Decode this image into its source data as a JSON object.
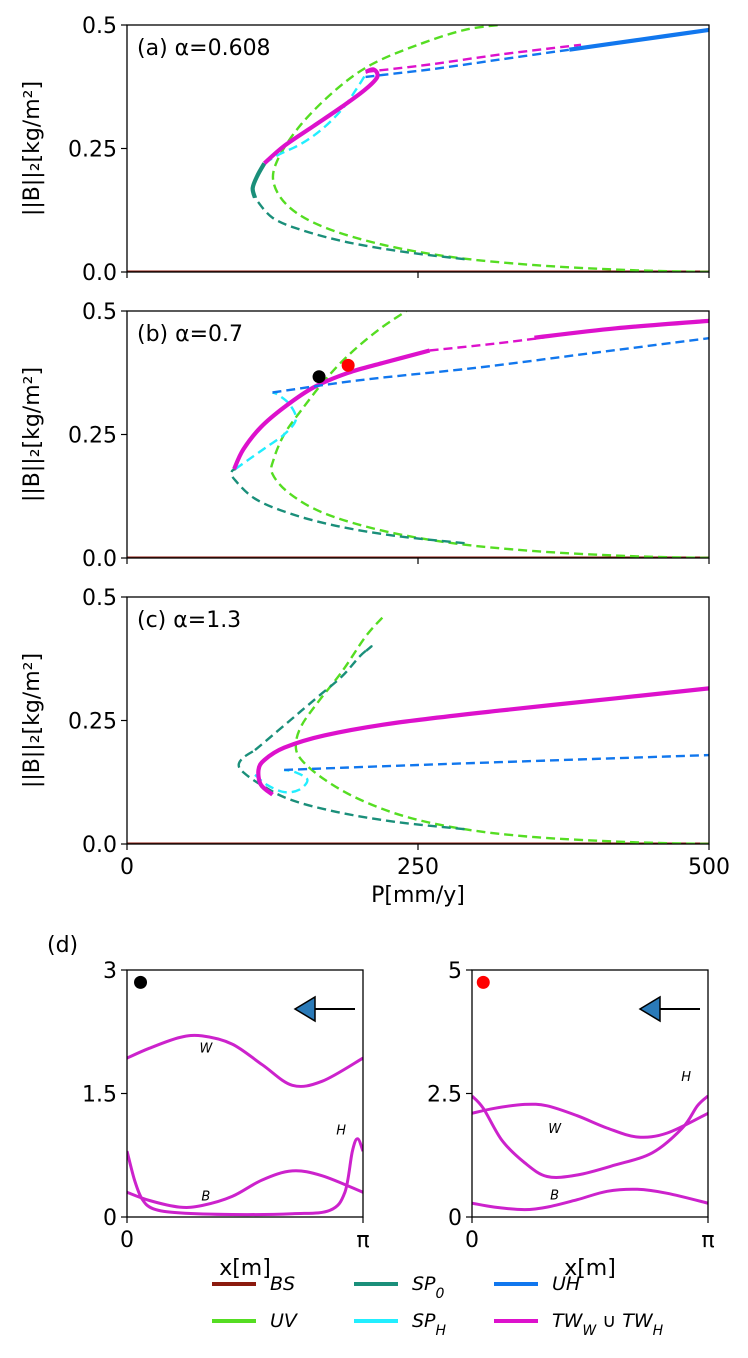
{
  "figure_label_d": "(d)",
  "legend": [
    {
      "key": "BS",
      "label": "BS",
      "color": "#8b1a0e",
      "style": "solid"
    },
    {
      "key": "UV",
      "label": "UV",
      "color": "#55dd22",
      "style": "solid"
    },
    {
      "key": "SP0",
      "label": "SP",
      "sub": "0",
      "color": "#1a8f7a",
      "style": "solid"
    },
    {
      "key": "SPH",
      "label": "SP",
      "sub": "H",
      "color": "#22eeff",
      "style": "solid"
    },
    {
      "key": "UH",
      "label": "UH",
      "color": "#1177ee",
      "style": "solid"
    },
    {
      "key": "TW",
      "label": "TW",
      "sub": "W",
      "mid": " ∪ ",
      "label2": "TW",
      "sub2": "H",
      "color": "#dd11cc",
      "style": "solid"
    }
  ],
  "chart_data": [
    {
      "id": "a",
      "type": "line",
      "panel_label": "(a) α=0.608",
      "ylabel": "||B||₂[kg/m²]",
      "xlim": [
        0,
        500
      ],
      "ylim": [
        0,
        0.5
      ],
      "yticks": [
        "0.0",
        "0.25",
        "0.5"
      ],
      "xticks": [],
      "series": [
        {
          "name": "BS",
          "color": "#8b1a0e",
          "dash": false,
          "x": [
            0,
            500
          ],
          "y": [
            0.0,
            0.0
          ]
        },
        {
          "name": "UV",
          "color": "#55dd22",
          "dash": true,
          "x": [
            500,
            430,
            350,
            280,
            220,
            170,
            140,
            126,
            130,
            150,
            180,
            210,
            250,
            290,
            320
          ],
          "y": [
            0.0,
            0.004,
            0.014,
            0.03,
            0.055,
            0.09,
            0.13,
            0.18,
            0.23,
            0.3,
            0.37,
            0.42,
            0.46,
            0.49,
            0.5
          ]
        },
        {
          "name": "SP0 unstable",
          "color": "#1a8f7a",
          "dash": true,
          "x": [
            290,
            240,
            190,
            150,
            125,
            110
          ],
          "y": [
            0.026,
            0.04,
            0.06,
            0.085,
            0.11,
            0.15
          ]
        },
        {
          "name": "SP0 stable",
          "color": "#1a8f7a",
          "dash": false,
          "x": [
            110,
            108,
            112,
            118
          ],
          "y": [
            0.15,
            0.17,
            0.195,
            0.22
          ]
        },
        {
          "name": "SPH",
          "color": "#22eeff",
          "dash": true,
          "x": [
            118,
            130,
            150,
            168,
            185,
            197,
            205
          ],
          "y": [
            0.22,
            0.237,
            0.26,
            0.29,
            0.33,
            0.37,
            0.4
          ]
        },
        {
          "name": "TW stable",
          "color": "#dd11cc",
          "dash": false,
          "x": [
            118,
            135,
            160,
            185,
            205,
            215,
            212,
            205
          ],
          "y": [
            0.22,
            0.255,
            0.295,
            0.335,
            0.37,
            0.395,
            0.41,
            0.405
          ]
        },
        {
          "name": "TW unstable",
          "color": "#dd11cc",
          "dash": true,
          "x": [
            205,
            260,
            320,
            390
          ],
          "y": [
            0.405,
            0.42,
            0.44,
            0.46
          ]
        },
        {
          "name": "UH unstable",
          "color": "#1177ee",
          "dash": true,
          "x": [
            205,
            260,
            320,
            380
          ],
          "y": [
            0.395,
            0.41,
            0.43,
            0.45
          ]
        },
        {
          "name": "UH stable",
          "color": "#1177ee",
          "dash": false,
          "x": [
            380,
            440,
            500
          ],
          "y": [
            0.45,
            0.47,
            0.49
          ]
        }
      ]
    },
    {
      "id": "b",
      "type": "line",
      "panel_label": "(b) α=0.7",
      "ylabel": "||B||₂[kg/m²]",
      "xlim": [
        0,
        500
      ],
      "ylim": [
        0,
        0.5
      ],
      "yticks": [
        "0.0",
        "0.25",
        "0.5"
      ],
      "xticks": [],
      "series": [
        {
          "name": "BS",
          "color": "#8b1a0e",
          "dash": false,
          "x": [
            0,
            500
          ],
          "y": [
            0.0,
            0.0
          ]
        },
        {
          "name": "UV",
          "color": "#55dd22",
          "dash": true,
          "x": [
            500,
            430,
            350,
            280,
            220,
            170,
            140,
            125,
            126,
            135,
            150,
            170,
            190,
            215,
            240
          ],
          "y": [
            0.0,
            0.004,
            0.014,
            0.03,
            0.055,
            0.09,
            0.13,
            0.17,
            0.2,
            0.25,
            0.3,
            0.36,
            0.41,
            0.46,
            0.5
          ]
        },
        {
          "name": "SP0",
          "color": "#1a8f7a",
          "dash": true,
          "x": [
            290,
            230,
            180,
            140,
            110,
            92,
            90,
            93
          ],
          "y": [
            0.03,
            0.045,
            0.065,
            0.09,
            0.12,
            0.16,
            0.175,
            0.18
          ]
        },
        {
          "name": "SPH",
          "color": "#22eeff",
          "dash": true,
          "x": [
            93,
            105,
            120,
            135,
            145,
            140,
            130,
            125
          ],
          "y": [
            0.18,
            0.2,
            0.225,
            0.25,
            0.28,
            0.31,
            0.33,
            0.335
          ]
        },
        {
          "name": "TW stable a",
          "color": "#dd11cc",
          "dash": false,
          "x": [
            92,
            100,
            115,
            135,
            160,
            190,
            220,
            260
          ],
          "y": [
            0.18,
            0.22,
            0.265,
            0.305,
            0.345,
            0.375,
            0.395,
            0.42
          ]
        },
        {
          "name": "TW unstable",
          "color": "#dd11cc",
          "dash": true,
          "x": [
            260,
            320,
            360
          ],
          "y": [
            0.42,
            0.435,
            0.447
          ]
        },
        {
          "name": "TW stable b",
          "color": "#dd11cc",
          "dash": false,
          "x": [
            350,
            420,
            500
          ],
          "y": [
            0.446,
            0.465,
            0.48
          ]
        },
        {
          "name": "UH",
          "color": "#1177ee",
          "dash": true,
          "x": [
            125,
            200,
            300,
            400,
            500
          ],
          "y": [
            0.335,
            0.36,
            0.385,
            0.415,
            0.445
          ]
        }
      ],
      "markers": [
        {
          "name": "black-point",
          "x": 165,
          "y": 0.367,
          "color": "#000000"
        },
        {
          "name": "red-point",
          "x": 190,
          "y": 0.39,
          "color": "#ff0000"
        }
      ]
    },
    {
      "id": "c",
      "type": "line",
      "panel_label": "(c) α=1.3",
      "ylabel": "||B||₂[kg/m²]",
      "xlabel": "P[mm/y]",
      "xlim": [
        0,
        500
      ],
      "ylim": [
        0,
        0.5
      ],
      "yticks": [
        "0.0",
        "0.25",
        "0.5"
      ],
      "xticks": [
        "0",
        "250",
        "500"
      ],
      "series": [
        {
          "name": "BS",
          "color": "#8b1a0e",
          "dash": false,
          "x": [
            0,
            500
          ],
          "y": [
            0.0,
            0.0
          ]
        },
        {
          "name": "UV",
          "color": "#55dd22",
          "dash": true,
          "x": [
            500,
            430,
            350,
            290,
            240,
            200,
            170,
            150,
            145,
            150,
            165,
            185,
            205,
            220
          ],
          "y": [
            0.0,
            0.004,
            0.014,
            0.03,
            0.055,
            0.09,
            0.13,
            0.17,
            0.2,
            0.24,
            0.29,
            0.35,
            0.42,
            0.46
          ]
        },
        {
          "name": "SP0 lower",
          "color": "#1a8f7a",
          "dash": true,
          "x": [
            290,
            230,
            180,
            140,
            115,
            100,
            96,
            100,
            110
          ],
          "y": [
            0.03,
            0.045,
            0.065,
            0.09,
            0.12,
            0.145,
            0.16,
            0.175,
            0.19
          ]
        },
        {
          "name": "SP0 upper",
          "color": "#1a8f7a",
          "dash": true,
          "x": [
            110,
            125,
            140,
            150,
            165,
            185,
            200,
            210,
            205
          ],
          "y": [
            0.19,
            0.22,
            0.25,
            0.27,
            0.3,
            0.34,
            0.38,
            0.4,
            0.39
          ]
        },
        {
          "name": "SPH",
          "color": "#22eeff",
          "dash": true,
          "x": [
            110,
            120,
            135,
            148,
            155,
            145,
            135
          ],
          "y": [
            0.14,
            0.12,
            0.105,
            0.11,
            0.13,
            0.145,
            0.15
          ]
        },
        {
          "name": "TW",
          "color": "#dd11cc",
          "dash": false,
          "x": [
            125,
            115,
            113,
            118,
            135,
            170,
            230,
            320,
            420,
            500
          ],
          "y": [
            0.1,
            0.12,
            0.15,
            0.17,
            0.195,
            0.22,
            0.245,
            0.27,
            0.295,
            0.315
          ]
        },
        {
          "name": "UH",
          "color": "#1177ee",
          "dash": true,
          "x": [
            135,
            250,
            400,
            500
          ],
          "y": [
            0.15,
            0.16,
            0.172,
            0.18
          ]
        }
      ]
    },
    {
      "id": "d-left",
      "type": "line",
      "xlabel": "x[m]",
      "xlim": [
        0,
        3.1416
      ],
      "ylim": [
        0,
        3
      ],
      "yticks": [
        "0",
        "1.5",
        "3"
      ],
      "xticks": [
        "0",
        "π"
      ],
      "curve_labels": {
        "W": "W",
        "B": "B",
        "H": "H"
      },
      "series": [
        {
          "name": "W",
          "color": "#cc22cc",
          "x": [
            0,
            0.3,
            0.7,
            1.0,
            1.4,
            1.8,
            2.2,
            2.6,
            3.1416
          ],
          "y": [
            1.93,
            2.05,
            2.18,
            2.2,
            2.1,
            1.85,
            1.6,
            1.65,
            1.93
          ]
        },
        {
          "name": "B",
          "color": "#cc22cc",
          "x": [
            0,
            0.3,
            0.7,
            1.0,
            1.4,
            1.8,
            2.2,
            2.6,
            3.1416
          ],
          "y": [
            0.3,
            0.2,
            0.12,
            0.14,
            0.25,
            0.45,
            0.56,
            0.5,
            0.3
          ]
        },
        {
          "name": "H",
          "color": "#cc22cc",
          "x": [
            0,
            0.1,
            0.2,
            0.35,
            0.7,
            1.4,
            2.2,
            2.7,
            2.9,
            3.0,
            3.07,
            3.1416
          ],
          "y": [
            0.8,
            0.45,
            0.22,
            0.1,
            0.05,
            0.03,
            0.04,
            0.08,
            0.3,
            0.8,
            0.95,
            0.8
          ]
        }
      ],
      "marker": {
        "name": "black-point",
        "color": "#000000",
        "x": 0.18,
        "y": 2.85
      },
      "arrow": {
        "direction": "left",
        "color": "#2a7ab8"
      }
    },
    {
      "id": "d-right",
      "type": "line",
      "xlabel": "x[m]",
      "xlim": [
        0,
        3.1416
      ],
      "ylim": [
        0,
        5
      ],
      "yticks": [
        "0",
        "2.5",
        "5"
      ],
      "xticks": [
        "0",
        "π"
      ],
      "curve_labels": {
        "W": "W",
        "B": "B",
        "H": "H"
      },
      "series": [
        {
          "name": "W",
          "color": "#cc22cc",
          "x": [
            0,
            0.3,
            0.7,
            1.0,
            1.4,
            1.8,
            2.2,
            2.6,
            3.1416
          ],
          "y": [
            2.1,
            2.2,
            2.28,
            2.25,
            2.05,
            1.8,
            1.62,
            1.7,
            2.1
          ]
        },
        {
          "name": "B",
          "color": "#cc22cc",
          "x": [
            0,
            0.3,
            0.7,
            1.0,
            1.4,
            1.8,
            2.2,
            2.6,
            3.1416
          ],
          "y": [
            0.28,
            0.2,
            0.15,
            0.2,
            0.35,
            0.52,
            0.56,
            0.48,
            0.28
          ]
        },
        {
          "name": "H",
          "color": "#cc22cc",
          "x": [
            0,
            0.15,
            0.4,
            0.7,
            1.0,
            1.4,
            1.9,
            2.4,
            2.8,
            3.0,
            3.1416
          ],
          "y": [
            2.45,
            2.2,
            1.55,
            1.1,
            0.82,
            0.85,
            1.05,
            1.3,
            1.8,
            2.25,
            2.45
          ]
        }
      ],
      "marker": {
        "name": "red-point",
        "color": "#ff0000",
        "x": 0.15,
        "y": 4.75
      },
      "arrow": {
        "direction": "left",
        "color": "#2a7ab8"
      }
    }
  ]
}
